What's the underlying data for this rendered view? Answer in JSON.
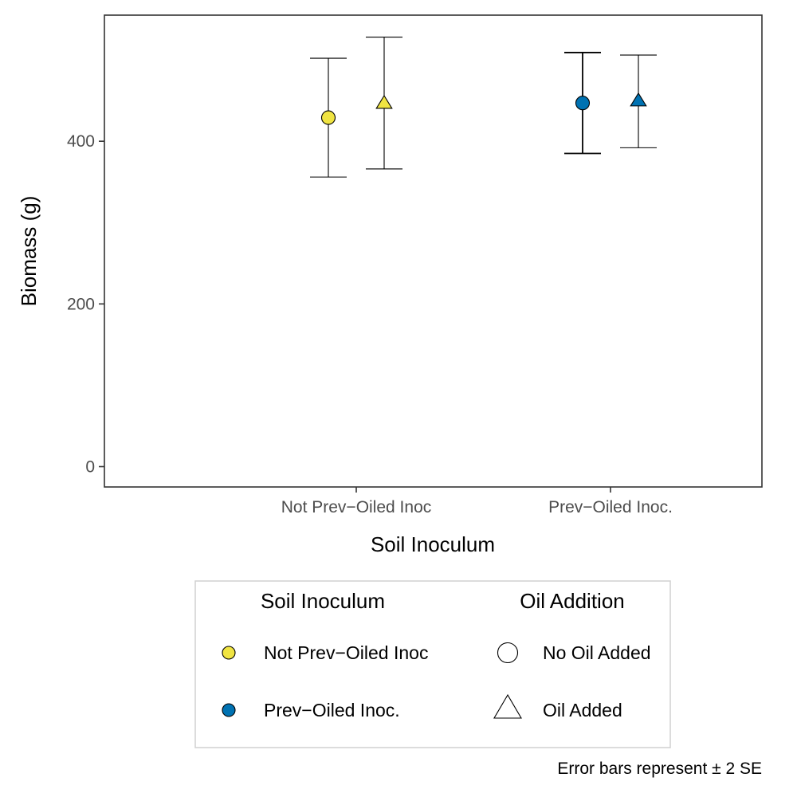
{
  "chart_data": {
    "type": "scatter",
    "title": "",
    "xlabel": "Soil Inoculum",
    "ylabel": "Biomass (g)",
    "categories": [
      "Not Prev−Oiled Inoc",
      "Prev−Oiled Inoc."
    ],
    "ylim": [
      -25,
      555
    ],
    "yticks": [
      0,
      200,
      400
    ],
    "grid": false,
    "points": [
      {
        "category": "Not Prev−Oiled Inoc",
        "oil": "No Oil Added",
        "shape": "circle",
        "color": "#F0E442",
        "y": 429,
        "lower": 356,
        "upper": 502
      },
      {
        "category": "Not Prev−Oiled Inoc",
        "oil": "Oil Added",
        "shape": "triangle",
        "color": "#F0E442",
        "y": 447,
        "lower": 366,
        "upper": 528
      },
      {
        "category": "Prev−Oiled Inoc.",
        "oil": "No Oil Added",
        "shape": "circle",
        "color": "#0072B2",
        "y": 447,
        "lower": 385,
        "upper": 509
      },
      {
        "category": "Prev−Oiled Inoc.",
        "oil": "Oil Added",
        "shape": "triangle",
        "color": "#0072B2",
        "y": 450,
        "lower": 392,
        "upper": 506
      }
    ],
    "legend": {
      "placement": "bottom",
      "groups": [
        {
          "title": "Soil Inoculum",
          "items": [
            {
              "label": "Not Prev−Oiled Inoc",
              "shape": "circle",
              "color": "#F0E442"
            },
            {
              "label": "Prev−Oiled Inoc.",
              "shape": "circle",
              "color": "#0072B2"
            }
          ]
        },
        {
          "title": "Oil Addition",
          "items": [
            {
              "label": "No Oil Added",
              "shape": "circle",
              "color": "#ffffff"
            },
            {
              "label": "Oil Added",
              "shape": "triangle",
              "color": "#ffffff"
            }
          ]
        }
      ]
    },
    "caption": "Error bars represent ± 2 SE"
  }
}
